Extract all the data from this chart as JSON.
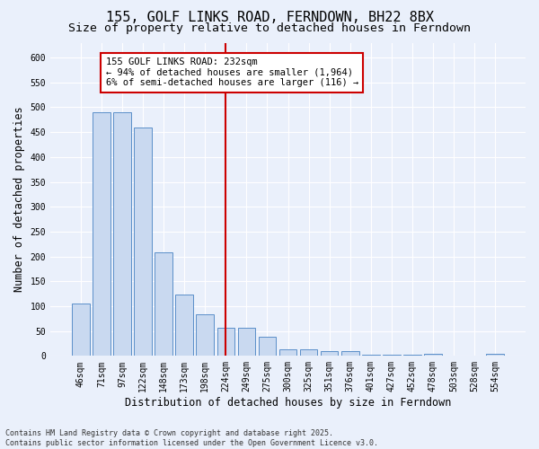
{
  "title": "155, GOLF LINKS ROAD, FERNDOWN, BH22 8BX",
  "subtitle": "Size of property relative to detached houses in Ferndown",
  "xlabel": "Distribution of detached houses by size in Ferndown",
  "ylabel": "Number of detached properties",
  "footnote1": "Contains HM Land Registry data © Crown copyright and database right 2025.",
  "footnote2": "Contains public sector information licensed under the Open Government Licence v3.0.",
  "categories": [
    "46sqm",
    "71sqm",
    "97sqm",
    "122sqm",
    "148sqm",
    "173sqm",
    "198sqm",
    "224sqm",
    "249sqm",
    "275sqm",
    "300sqm",
    "325sqm",
    "351sqm",
    "376sqm",
    "401sqm",
    "427sqm",
    "452sqm",
    "478sqm",
    "503sqm",
    "528sqm",
    "554sqm"
  ],
  "values": [
    105,
    490,
    490,
    460,
    208,
    123,
    83,
    57,
    57,
    38,
    13,
    13,
    10,
    10,
    3,
    3,
    3,
    5,
    0,
    0,
    5
  ],
  "bar_color": "#c9d9f0",
  "bar_edge_color": "#5b8fc9",
  "vline_x_index": 7,
  "vline_color": "#cc0000",
  "annotation_text": "155 GOLF LINKS ROAD: 232sqm\n← 94% of detached houses are smaller (1,964)\n6% of semi-detached houses are larger (116) →",
  "annotation_box_color": "#ffffff",
  "annotation_box_edge": "#cc0000",
  "ylim": [
    0,
    630
  ],
  "yticks": [
    0,
    50,
    100,
    150,
    200,
    250,
    300,
    350,
    400,
    450,
    500,
    550,
    600
  ],
  "background_color": "#eaf0fb",
  "plot_background": "#eaf0fb",
  "title_fontsize": 11,
  "subtitle_fontsize": 9.5,
  "tick_fontsize": 7,
  "ylabel_fontsize": 8.5,
  "xlabel_fontsize": 8.5,
  "footnote_fontsize": 6.0
}
